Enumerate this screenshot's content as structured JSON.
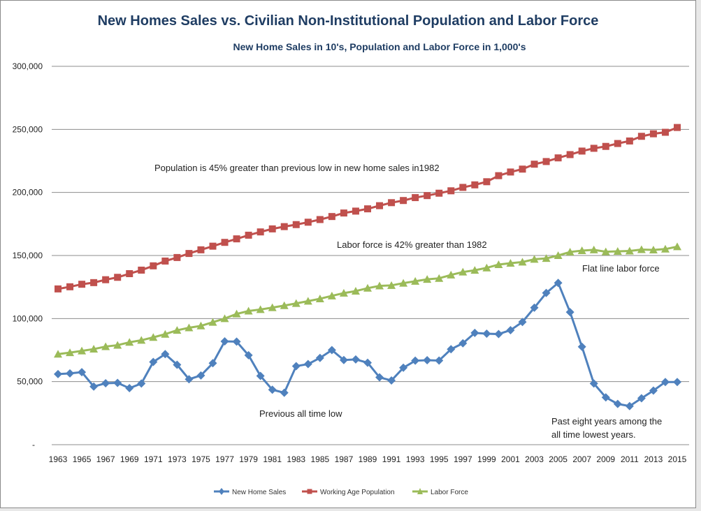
{
  "chart_data": {
    "type": "line",
    "title": "New Homes Sales vs. Civilian Non-Institutional Population and Labor Force",
    "subtitle": "New Home Sales in 10's, Population  and Labor Force in 1,000's",
    "ylim": [
      0,
      300000
    ],
    "y_ticks": [
      "-",
      "50,000",
      "100,000",
      "150,000",
      "200,000",
      "250,000",
      "300,000"
    ],
    "grid": true,
    "legend_position": "bottom",
    "x": [
      1963,
      1964,
      1965,
      1966,
      1967,
      1968,
      1969,
      1970,
      1971,
      1972,
      1973,
      1974,
      1975,
      1976,
      1977,
      1978,
      1979,
      1980,
      1981,
      1982,
      1983,
      1984,
      1985,
      1986,
      1987,
      1988,
      1989,
      1990,
      1991,
      1992,
      1993,
      1994,
      1995,
      1996,
      1997,
      1998,
      1999,
      2000,
      2001,
      2002,
      2003,
      2004,
      2005,
      2006,
      2007,
      2008,
      2009,
      2010,
      2011,
      2012,
      2013,
      2014,
      2015
    ],
    "x_tick_labels": [
      "1963",
      "1965",
      "1967",
      "1969",
      "1971",
      "1973",
      "1975",
      "1977",
      "1979",
      "1981",
      "1983",
      "1985",
      "1987",
      "1989",
      "1991",
      "1993",
      "1995",
      "1997",
      "1999",
      "2001",
      "2003",
      "2005",
      "2007",
      "2009",
      "2011",
      "2013",
      "2015"
    ],
    "series": [
      {
        "name": "New Home Sales",
        "color": "#4f81bd",
        "marker": "diamond",
        "values": [
          56000,
          56500,
          57500,
          46100,
          48700,
          49000,
          44800,
          48500,
          65600,
          71800,
          63400,
          51900,
          54900,
          64600,
          81900,
          81700,
          70900,
          54500,
          43600,
          41200,
          62300,
          63900,
          68800,
          75000,
          67100,
          67600,
          65000,
          53400,
          50900,
          61000,
          66600,
          67000,
          66700,
          75700,
          80400,
          88600,
          88000,
          87700,
          90800,
          97300,
          108600,
          120300,
          128300,
          105100,
          77600,
          48500,
          37500,
          32300,
          30600,
          36800,
          42900,
          49700,
          49700
        ]
      },
      {
        "name": "Working Age Population",
        "color": "#c0504d",
        "marker": "square",
        "values": [
          123500,
          125200,
          127200,
          128500,
          130800,
          132700,
          135600,
          138400,
          141800,
          145600,
          148400,
          151600,
          154500,
          157400,
          160400,
          163200,
          166100,
          168700,
          171100,
          172900,
          174500,
          176400,
          178500,
          180900,
          183700,
          185200,
          187000,
          189500,
          191900,
          193600,
          195900,
          197500,
          199400,
          201300,
          204000,
          206000,
          208500,
          213300,
          216200,
          218500,
          222400,
          224500,
          227400,
          230000,
          232800,
          235000,
          236500,
          238800,
          240800,
          244500,
          246500,
          247700,
          251500
        ]
      },
      {
        "name": "Labor Force",
        "color": "#9bbb59",
        "marker": "triangle",
        "values": [
          71800,
          73000,
          74400,
          75800,
          77800,
          78900,
          81200,
          82800,
          85100,
          87600,
          90700,
          92700,
          94200,
          97100,
          100000,
          103700,
          106000,
          107200,
          108700,
          110300,
          112000,
          113800,
          115700,
          118000,
          120200,
          121800,
          124100,
          125900,
          126300,
          128100,
          129600,
          131100,
          131900,
          134600,
          136900,
          138300,
          140200,
          142800,
          143900,
          144800,
          147000,
          147700,
          150000,
          152800,
          153900,
          154500,
          153000,
          153300,
          153600,
          154700,
          154400,
          155100,
          157000
        ]
      }
    ],
    "annotations": [
      "Population is 45% greater than previous low in new home sales in1982",
      "Labor force is 42% greater than 1982",
      "Flat line labor force",
      "Previous all time low",
      "Past eight years among the",
      "all time lowest years."
    ]
  }
}
